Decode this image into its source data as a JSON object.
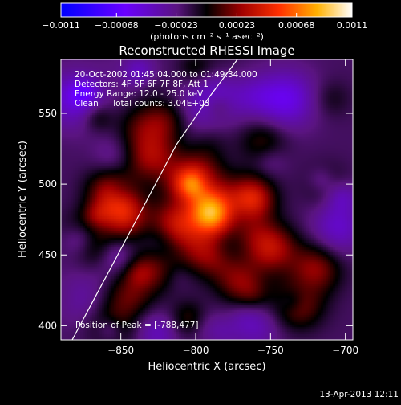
{
  "chart_data": {
    "type": "heatmap",
    "title": "Reconstructed RHESSI Image",
    "xlabel": "Heliocentric X (arcsec)",
    "ylabel": "Heliocentric Y (arcsec)",
    "xlim": [
      -890,
      -695
    ],
    "ylim": [
      390,
      588
    ],
    "x_ticks": [
      -850,
      -800,
      -750,
      -700
    ],
    "y_ticks": [
      400,
      450,
      500,
      550
    ],
    "colorbar": {
      "min": -0.0011,
      "max": 0.0011,
      "ticks": [
        "-0.0011",
        "-0.00068",
        "-0.00023",
        "0.00023",
        "0.00068",
        "0.0011"
      ],
      "label": "(photons cm⁻² s⁻¹ asec⁻²)"
    },
    "info": [
      "20-Oct-2002 01:45:04.000 to 01:49:34.000",
      "Detectors: 4F 5F 6F 7F 8F, Att 1",
      "Energy Range: 12.0 - 25.0 keV",
      "Clean     Total counts: 3.04E+03"
    ],
    "peak_label": "Position of Peak = [-788,477]",
    "peak": [
      -788,
      477
    ],
    "footer_date": "13-Apr-2013 12:11",
    "sources": [
      {
        "x": -788,
        "y": 477,
        "amp": 1.0,
        "sigma": 11
      },
      {
        "x": -800,
        "y": 500,
        "amp": 0.75,
        "sigma": 12
      },
      {
        "x": -812,
        "y": 470,
        "amp": 0.55,
        "sigma": 13
      },
      {
        "x": -790,
        "y": 450,
        "amp": 0.45,
        "sigma": 12
      },
      {
        "x": -830,
        "y": 520,
        "amp": 0.4,
        "sigma": 13
      },
      {
        "x": -848,
        "y": 480,
        "amp": 0.45,
        "sigma": 11
      },
      {
        "x": -858,
        "y": 495,
        "amp": 0.35,
        "sigma": 11
      },
      {
        "x": -765,
        "y": 490,
        "amp": 0.4,
        "sigma": 12
      },
      {
        "x": -750,
        "y": 455,
        "amp": 0.45,
        "sigma": 12
      },
      {
        "x": -720,
        "y": 440,
        "amp": 0.35,
        "sigma": 12
      },
      {
        "x": -732,
        "y": 415,
        "amp": 0.35,
        "sigma": 12
      },
      {
        "x": -770,
        "y": 430,
        "amp": 0.32,
        "sigma": 11
      },
      {
        "x": -830,
        "y": 440,
        "amp": 0.3,
        "sigma": 12
      },
      {
        "x": -845,
        "y": 420,
        "amp": 0.25,
        "sigma": 11
      },
      {
        "x": -820,
        "y": 545,
        "amp": 0.25,
        "sigma": 11
      },
      {
        "x": -755,
        "y": 530,
        "amp": 0.22,
        "sigma": 11
      },
      {
        "x": -713,
        "y": 500,
        "amp": 0.2,
        "sigma": 10
      },
      {
        "x": -865,
        "y": 455,
        "amp": 0.22,
        "sigma": 10
      },
      {
        "x": -790,
        "y": 560,
        "amp": -0.3,
        "sigma": 14
      },
      {
        "x": -740,
        "y": 560,
        "amp": -0.35,
        "sigma": 14
      },
      {
        "x": -880,
        "y": 560,
        "amp": -0.3,
        "sigma": 14
      },
      {
        "x": -705,
        "y": 470,
        "amp": -0.25,
        "sigma": 12
      },
      {
        "x": -880,
        "y": 420,
        "amp": -0.2,
        "sigma": 12
      },
      {
        "x": -760,
        "y": 400,
        "amp": -0.2,
        "sigma": 12
      }
    ],
    "noise": 0.08,
    "base": -0.15
  }
}
